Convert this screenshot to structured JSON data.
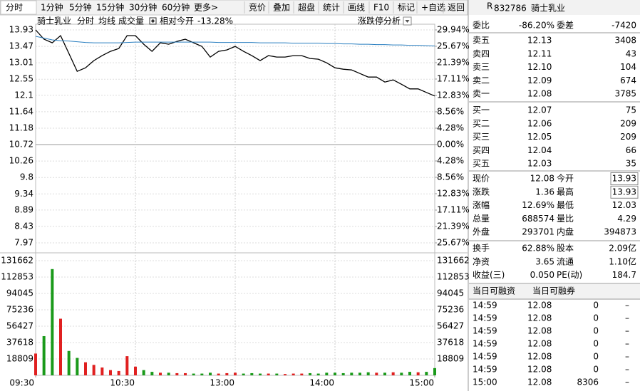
{
  "toolbar": {
    "periods": [
      "分时",
      "1分钟",
      "5分钟",
      "15分钟",
      "30分钟",
      "60分钟",
      "更多>"
    ],
    "tools": [
      "竞价",
      "叠加",
      "超盘",
      "统计",
      "画线",
      "F10",
      "标记",
      "+自选",
      "返回"
    ]
  },
  "chart_data": {
    "type": "line",
    "stock_name": "骑士乳业",
    "relative_label": "相对今开",
    "relative_value": "-13.28%",
    "analysis_button": "涨跌停分析",
    "x": [
      "09:30",
      "09:35",
      "09:40",
      "09:45",
      "09:50",
      "09:55",
      "10:00",
      "10:05",
      "10:10",
      "10:15",
      "10:20",
      "10:25",
      "10:30",
      "10:35",
      "10:40",
      "10:45",
      "10:50",
      "10:55",
      "11:00",
      "11:05",
      "11:10",
      "11:15",
      "11:20",
      "11:25",
      "13:00",
      "13:05",
      "13:10",
      "13:15",
      "13:20",
      "13:25",
      "13:30",
      "13:35",
      "13:40",
      "13:45",
      "13:50",
      "13:55",
      "14:00",
      "14:05",
      "14:10",
      "14:15",
      "14:20",
      "14:25",
      "14:30",
      "14:35",
      "14:40",
      "14:45",
      "14:50",
      "14:55",
      "15:00"
    ],
    "xticks": [
      "09:30",
      "10:30",
      "13:00",
      "14:00",
      "15:00"
    ],
    "series": [
      {
        "name": "分时",
        "color": "#000000",
        "values": [
          13.93,
          13.67,
          13.57,
          13.77,
          13.27,
          12.77,
          12.87,
          13.07,
          13.21,
          13.33,
          13.41,
          13.77,
          13.77,
          13.53,
          13.33,
          13.57,
          13.53,
          13.61,
          13.67,
          13.57,
          13.47,
          13.17,
          13.33,
          13.37,
          13.47,
          13.33,
          13.21,
          13.07,
          13.21,
          13.17,
          13.17,
          13.21,
          13.21,
          13.13,
          13.11,
          13.01,
          12.87,
          12.83,
          12.81,
          12.71,
          12.61,
          12.61,
          12.47,
          12.53,
          12.41,
          12.28,
          12.28,
          12.18,
          12.08
        ]
      },
      {
        "name": "均线",
        "color": "#2a7fc0",
        "values": [
          13.75,
          13.7,
          13.65,
          13.63,
          13.62,
          13.6,
          13.58,
          13.57,
          13.57,
          13.57,
          13.57,
          13.58,
          13.59,
          13.59,
          13.59,
          13.59,
          13.59,
          13.59,
          13.59,
          13.59,
          13.59,
          13.59,
          13.58,
          13.58,
          13.58,
          13.58,
          13.58,
          13.57,
          13.57,
          13.57,
          13.57,
          13.56,
          13.56,
          13.56,
          13.56,
          13.55,
          13.55,
          13.54,
          13.54,
          13.53,
          13.53,
          13.52,
          13.52,
          13.51,
          13.51,
          13.5,
          13.5,
          13.49,
          13.48
        ]
      }
    ],
    "ylim": [
      7.97,
      13.93
    ],
    "yticks": [
      13.93,
      13.47,
      13.01,
      12.55,
      12.1,
      11.64,
      11.18,
      10.72,
      10.26,
      9.8,
      9.34,
      8.89,
      8.43,
      7.97
    ],
    "y2lim": [
      -25.67,
      29.94
    ],
    "y2ticks": [
      {
        "value": 29.94,
        "label": "29.94%"
      },
      {
        "value": 25.67,
        "label": "25.67%"
      },
      {
        "value": 21.39,
        "label": "21.39%"
      },
      {
        "value": 17.11,
        "label": "17.11%"
      },
      {
        "value": 12.83,
        "label": "12.83%"
      },
      {
        "value": 8.56,
        "label": "8.56%"
      },
      {
        "value": 4.28,
        "label": "4.28%"
      },
      {
        "value": 0,
        "label": "0.00%"
      },
      {
        "value": -4.28,
        "label": "4.28%"
      },
      {
        "value": -8.56,
        "label": "8.56%"
      },
      {
        "value": -12.83,
        "label": "12.83%"
      },
      {
        "value": -17.11,
        "label": "17.11%"
      },
      {
        "value": -21.39,
        "label": "21.39%"
      },
      {
        "value": -25.67,
        "label": "25.67%"
      }
    ],
    "volume": {
      "name": "成交量",
      "up_color": "#e02020",
      "down_color": "#1a9a1a",
      "values": [
        25000,
        45000,
        122000,
        65000,
        28000,
        20000,
        15000,
        12000,
        9000,
        6000,
        5000,
        22000,
        10000,
        6000,
        4000,
        3000,
        3000,
        2500,
        2500,
        2000,
        2000,
        3000,
        2000,
        2500,
        3000,
        2000,
        2500,
        2000,
        2000,
        2000,
        1500,
        2000,
        2000,
        2500,
        2000,
        3000,
        3000,
        2500,
        3000,
        3000,
        3500,
        3000,
        3000,
        3500,
        3000,
        4000,
        3500,
        4000,
        8306
      ],
      "ylim": [
        0,
        131662
      ],
      "yticks": [
        131662,
        112853,
        94045,
        75236,
        56427,
        37618,
        18809
      ]
    }
  },
  "quote": {
    "flag": "R",
    "code": "832786",
    "name": "骑士乳业",
    "ratio": [
      [
        "委比",
        "-86.20%"
      ],
      [
        "委差",
        "-7420"
      ]
    ],
    "asks": [
      [
        "卖五",
        "12.13",
        "3408"
      ],
      [
        "卖四",
        "12.11",
        "43"
      ],
      [
        "卖三",
        "12.10",
        "104"
      ],
      [
        "卖二",
        "12.09",
        "674"
      ],
      [
        "卖一",
        "12.08",
        "3785"
      ]
    ],
    "bids": [
      [
        "买一",
        "12.07",
        "75"
      ],
      [
        "买二",
        "12.06",
        "209"
      ],
      [
        "买三",
        "12.05",
        "209"
      ],
      [
        "买四",
        "12.04",
        "66"
      ],
      [
        "买五",
        "12.03",
        "35"
      ]
    ],
    "stats": [
      [
        [
          "现价",
          "12.08"
        ],
        [
          "今开",
          "13.93"
        ]
      ],
      [
        [
          "涨跌",
          "1.36"
        ],
        [
          "最高",
          "13.93"
        ]
      ],
      [
        [
          "涨幅",
          "12.69%"
        ],
        [
          "最低",
          "12.03"
        ]
      ],
      [
        [
          "总量",
          "688574"
        ],
        [
          "量比",
          "4.29"
        ]
      ],
      [
        [
          "外盘",
          "293701"
        ],
        [
          "内盘",
          "394873"
        ]
      ]
    ],
    "finance": [
      [
        [
          "换手",
          "62.88%"
        ],
        [
          "股本",
          "2.09亿"
        ]
      ],
      [
        [
          "净资",
          "3.65"
        ],
        [
          "流通",
          "1.10亿"
        ]
      ],
      [
        [
          "收益(三)",
          "0.050"
        ],
        [
          "PE(动)",
          "184.7"
        ]
      ]
    ],
    "margin": [
      "当日可融资",
      "当日可融券"
    ],
    "trades": [
      [
        "14:59",
        "12.08",
        "0",
        "–"
      ],
      [
        "14:59",
        "12.08",
        "0",
        "–"
      ],
      [
        "14:59",
        "12.08",
        "0",
        "–"
      ],
      [
        "14:59",
        "12.08",
        "0",
        "–"
      ],
      [
        "14:59",
        "12.08",
        "0",
        "–"
      ],
      [
        "14:59",
        "12.08",
        "0",
        "–"
      ],
      [
        "15:00",
        "12.08",
        "8306",
        "–"
      ]
    ]
  }
}
